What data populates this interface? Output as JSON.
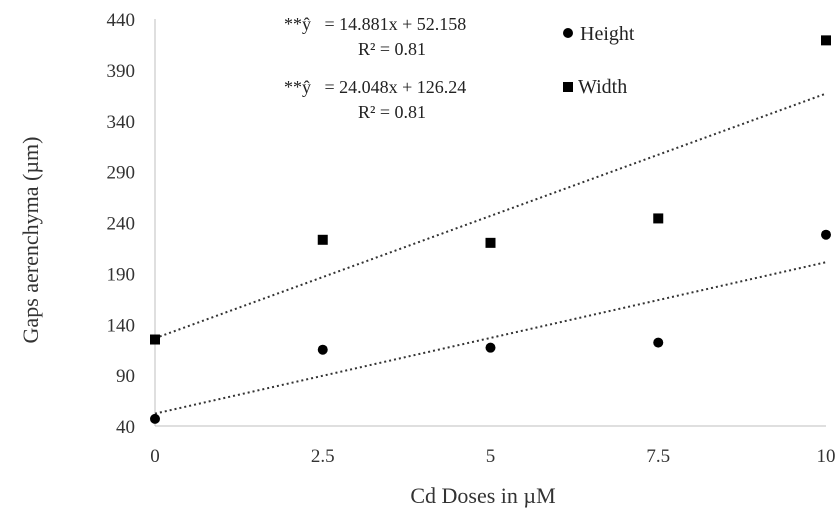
{
  "chart_data": {
    "type": "scatter",
    "xlabel": "Cd Doses in µM",
    "ylabel": "Gaps aerenchyma (µm)",
    "x_ticks": [
      "0",
      "2.5",
      "5",
      "7.5",
      "10"
    ],
    "y_ticks": [
      "40",
      "90",
      "140",
      "190",
      "240",
      "290",
      "340",
      "390",
      "440"
    ],
    "xlim": [
      0,
      10
    ],
    "ylim": [
      40,
      440
    ],
    "grid": false,
    "legend_position": "top-right",
    "series": [
      {
        "name": "Height",
        "marker": "circle",
        "color": "#000000",
        "x": [
          0,
          2.5,
          5,
          7.5,
          10
        ],
        "y": [
          47,
          115,
          117,
          122,
          228
        ],
        "trendline": {
          "slope": 14.881,
          "intercept": 52.158
        }
      },
      {
        "name": "Width",
        "marker": "square",
        "color": "#000000",
        "x": [
          0,
          2.5,
          5,
          7.5,
          10
        ],
        "y": [
          125,
          223,
          220,
          244,
          419
        ],
        "trendline": {
          "slope": 24.048,
          "intercept": 126.24
        }
      }
    ],
    "annotations": [
      {
        "equation": "**ŷ   = 14.881x + 52.158",
        "r2": "R² = 0.81"
      },
      {
        "equation": "**ŷ   = 24.048x + 126.24",
        "r2": "R² = 0.81"
      }
    ]
  }
}
